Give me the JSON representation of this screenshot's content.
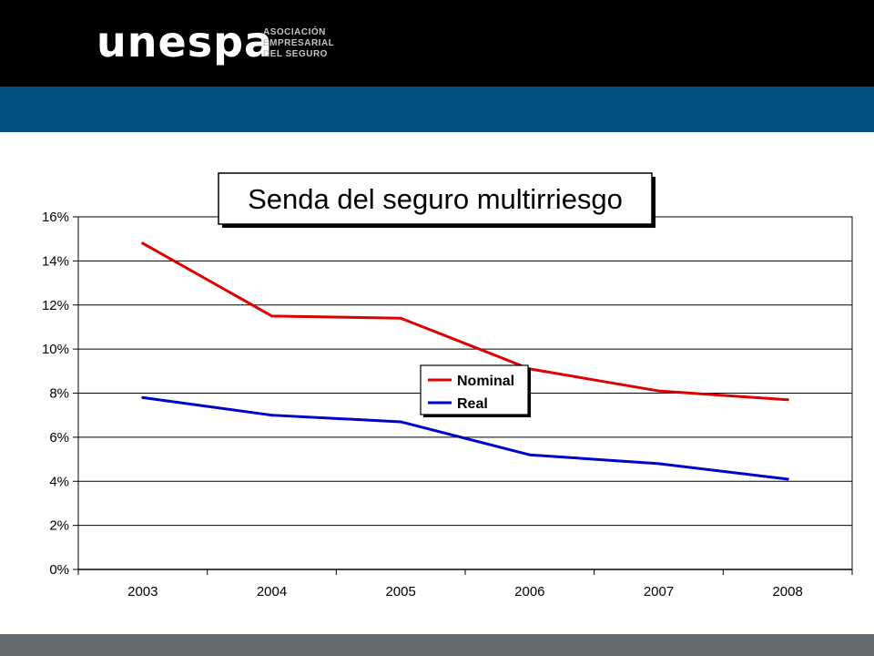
{
  "header": {
    "logo_text": "unespa",
    "logo_subtitle": [
      "ASOCIACIÓN",
      "EMPRESARIAL",
      "DEL SEGURO"
    ]
  },
  "colors": {
    "top_bar": "#000000",
    "accent_band": "#004f82",
    "bottom_bar": "#666b70",
    "nominal": "#dd0000",
    "real": "#0000cc"
  },
  "chart_data": {
    "type": "line",
    "title": "Senda del seguro multirriesgo",
    "xlabel": "",
    "ylabel": "",
    "categories": [
      "2003",
      "2004",
      "2005",
      "2006",
      "2007",
      "2008"
    ],
    "ylim": [
      0,
      16
    ],
    "yticks": [
      0,
      2,
      4,
      6,
      8,
      10,
      12,
      14,
      16
    ],
    "ytick_labels": [
      "0%",
      "2%",
      "4%",
      "6%",
      "8%",
      "10%",
      "12%",
      "14%",
      "16%"
    ],
    "grid": true,
    "legend_position": "center",
    "series": [
      {
        "name": "Nominal",
        "color": "#dd0000",
        "values": [
          14.8,
          11.5,
          11.4,
          9.1,
          8.1,
          7.7
        ]
      },
      {
        "name": "Real",
        "color": "#0000cc",
        "values": [
          7.8,
          7.0,
          6.7,
          5.2,
          4.8,
          4.1
        ]
      }
    ]
  }
}
